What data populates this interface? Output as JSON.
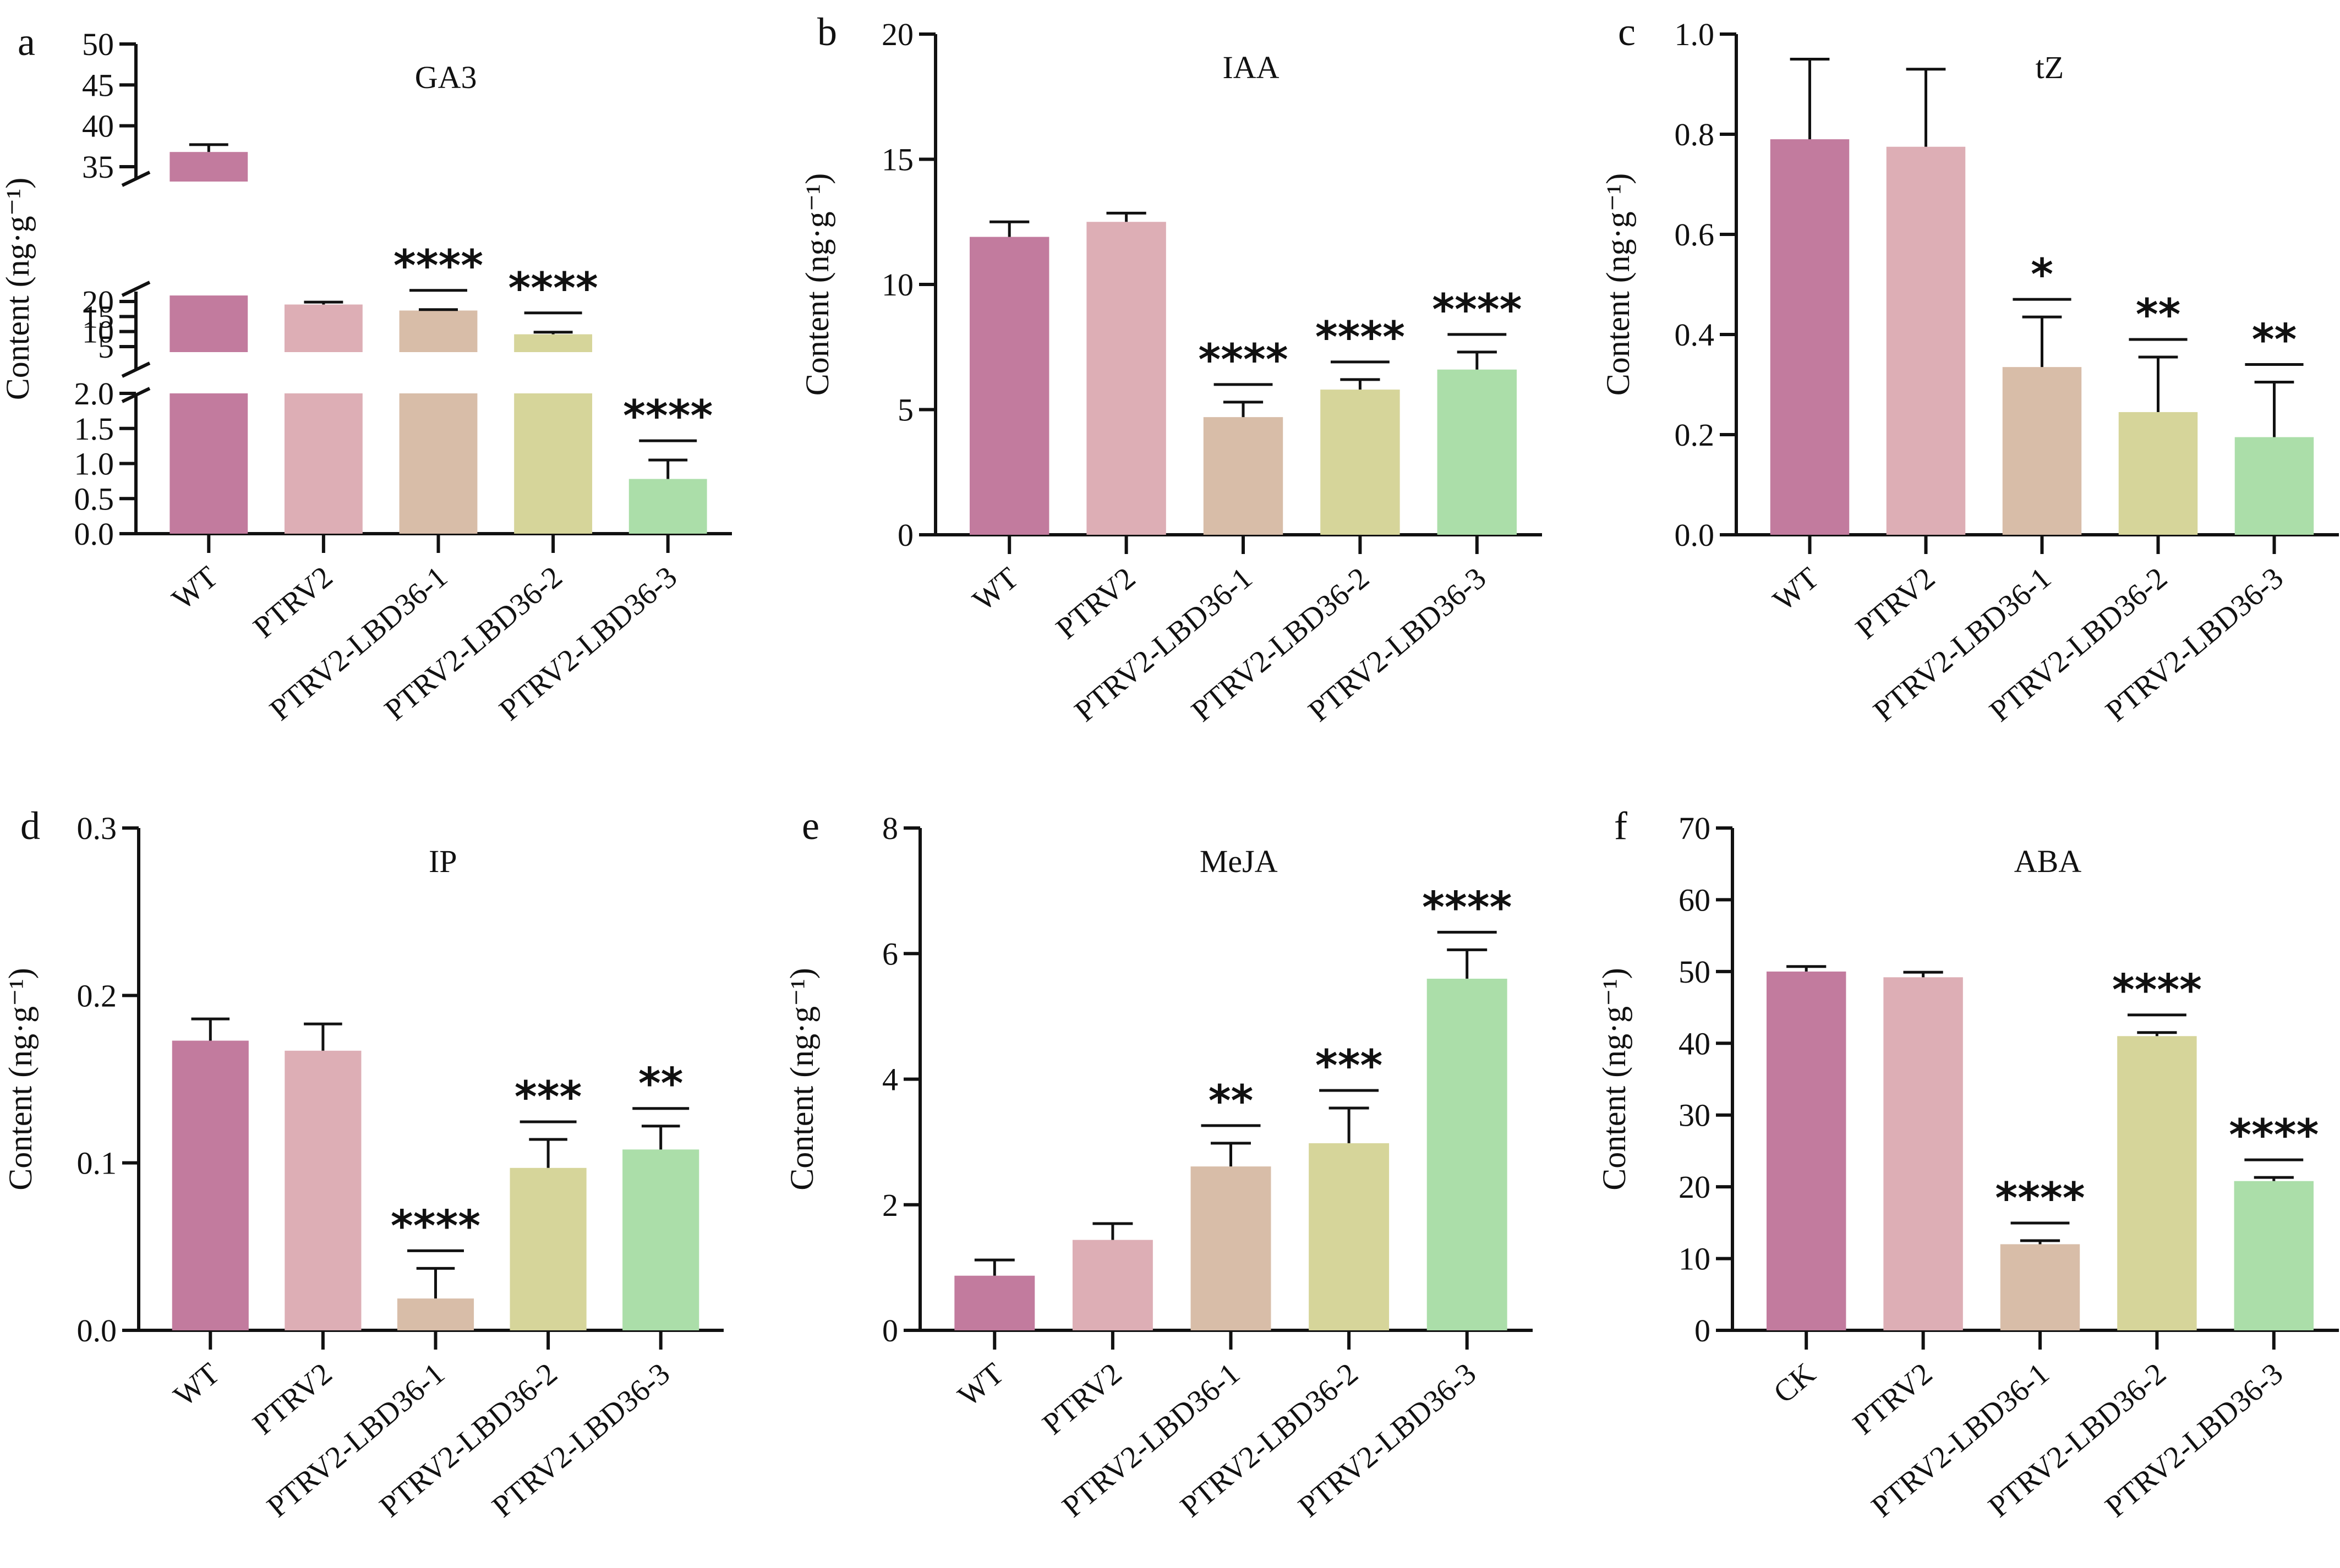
{
  "figure": {
    "ylabel": "Content (ng·g⁻¹)",
    "colors": [
      "#c27b9e",
      "#ddaeb5",
      "#d8bda8",
      "#d6d59a",
      "#abdea9"
    ]
  },
  "chart_data": [
    {
      "type": "bar",
      "panel": "a",
      "title": "GA3",
      "xlabel": "",
      "ylabel": "Content (ng·g⁻¹)",
      "categories": [
        "WT",
        "PTRV2",
        "PTRV2-LBD36-1",
        "PTRV2-LBD36-2",
        "PTRV2-LBD36-3"
      ],
      "values": [
        36.8,
        19.0,
        17.0,
        9.1,
        0.78
      ],
      "error_upper": [
        0.9,
        0.8,
        0.3,
        0.7,
        0.27
      ],
      "significance": [
        "",
        "",
        "****",
        "****",
        "****"
      ],
      "ylim": [
        0,
        50
      ],
      "broken_axis": [
        {
          "range": [
            0,
            2
          ],
          "ticks": [
            "0.0",
            "0.5",
            "1.0",
            "1.5",
            "2.0"
          ]
        },
        {
          "range": [
            2,
            22
          ],
          "ticks": [
            "5",
            "10",
            "15",
            "20"
          ]
        },
        {
          "range": [
            33,
            50
          ],
          "ticks": [
            "35",
            "40",
            "45",
            "50"
          ]
        }
      ],
      "grid": false
    },
    {
      "type": "bar",
      "panel": "b",
      "title": "IAA",
      "xlabel": "",
      "ylabel": "Content (ng·g⁻¹)",
      "categories": [
        "WT",
        "PTRV2",
        "PTRV2-LBD36-1",
        "PTRV2-LBD36-2",
        "PTRV2-LBD36-3"
      ],
      "values": [
        11.9,
        12.5,
        4.7,
        5.8,
        6.6
      ],
      "error_upper": [
        0.6,
        0.35,
        0.6,
        0.4,
        0.7
      ],
      "significance": [
        "",
        "",
        "****",
        "****",
        "****"
      ],
      "ylim": [
        0,
        20
      ],
      "yticks": [
        "0",
        "5",
        "10",
        "15",
        "20"
      ],
      "grid": false
    },
    {
      "type": "bar",
      "panel": "c",
      "title": "tZ",
      "xlabel": "",
      "ylabel": "Content (ng·g⁻¹)",
      "categories": [
        "WT",
        "PTRV2",
        "PTRV2-LBD36-1",
        "PTRV2-LBD36-2",
        "PTRV2-LBD36-3"
      ],
      "values": [
        0.79,
        0.775,
        0.335,
        0.245,
        0.195
      ],
      "error_upper": [
        0.16,
        0.155,
        0.1,
        0.11,
        0.11
      ],
      "significance": [
        "",
        "",
        "*",
        "**",
        "**"
      ],
      "ylim": [
        0,
        1.0
      ],
      "yticks": [
        "0.0",
        "0.2",
        "0.4",
        "0.6",
        "0.8",
        "1.0"
      ],
      "grid": false
    },
    {
      "type": "bar",
      "panel": "d",
      "title": "IP",
      "xlabel": "",
      "ylabel": "Content (ng·g⁻¹)",
      "categories": [
        "WT",
        "PTRV2",
        "PTRV2-LBD36-1",
        "PTRV2-LBD36-2",
        "PTRV2-LBD36-3"
      ],
      "values": [
        0.173,
        0.167,
        0.019,
        0.097,
        0.108
      ],
      "error_upper": [
        0.013,
        0.016,
        0.018,
        0.017,
        0.014
      ],
      "significance": [
        "",
        "",
        "****",
        "***",
        "**"
      ],
      "ylim": [
        0,
        0.3
      ],
      "yticks": [
        "0.0",
        "0.1",
        "0.2",
        "0.3"
      ],
      "grid": false
    },
    {
      "type": "bar",
      "panel": "e",
      "title": "MeJA",
      "xlabel": "",
      "ylabel": "Content (ng·g⁻¹)",
      "categories": [
        "WT",
        "PTRV2",
        "PTRV2-LBD36-1",
        "PTRV2-LBD36-2",
        "PTRV2-LBD36-3"
      ],
      "values": [
        0.87,
        1.44,
        2.61,
        2.98,
        5.6
      ],
      "error_upper": [
        0.25,
        0.26,
        0.37,
        0.56,
        0.46
      ],
      "significance": [
        "",
        "",
        "**",
        "***",
        "****"
      ],
      "ylim": [
        0,
        8
      ],
      "yticks": [
        "0",
        "2",
        "4",
        "6",
        "8"
      ],
      "grid": false
    },
    {
      "type": "bar",
      "panel": "f",
      "title": "ABA",
      "xlabel": "",
      "ylabel": "Content (ng·g⁻¹)",
      "categories": [
        "CK",
        "PTRV2",
        "PTRV2-LBD36-1",
        "PTRV2-LBD36-2",
        "PTRV2-LBD36-3"
      ],
      "values": [
        50.0,
        49.2,
        12.0,
        41.0,
        20.8
      ],
      "error_upper": [
        0.7,
        0.7,
        0.5,
        0.5,
        0.5
      ],
      "significance": [
        "",
        "",
        "****",
        "****",
        "****"
      ],
      "ylim": [
        0,
        70
      ],
      "yticks": [
        "0",
        "10",
        "20",
        "30",
        "40",
        "50",
        "60",
        "70"
      ],
      "grid": false
    }
  ]
}
